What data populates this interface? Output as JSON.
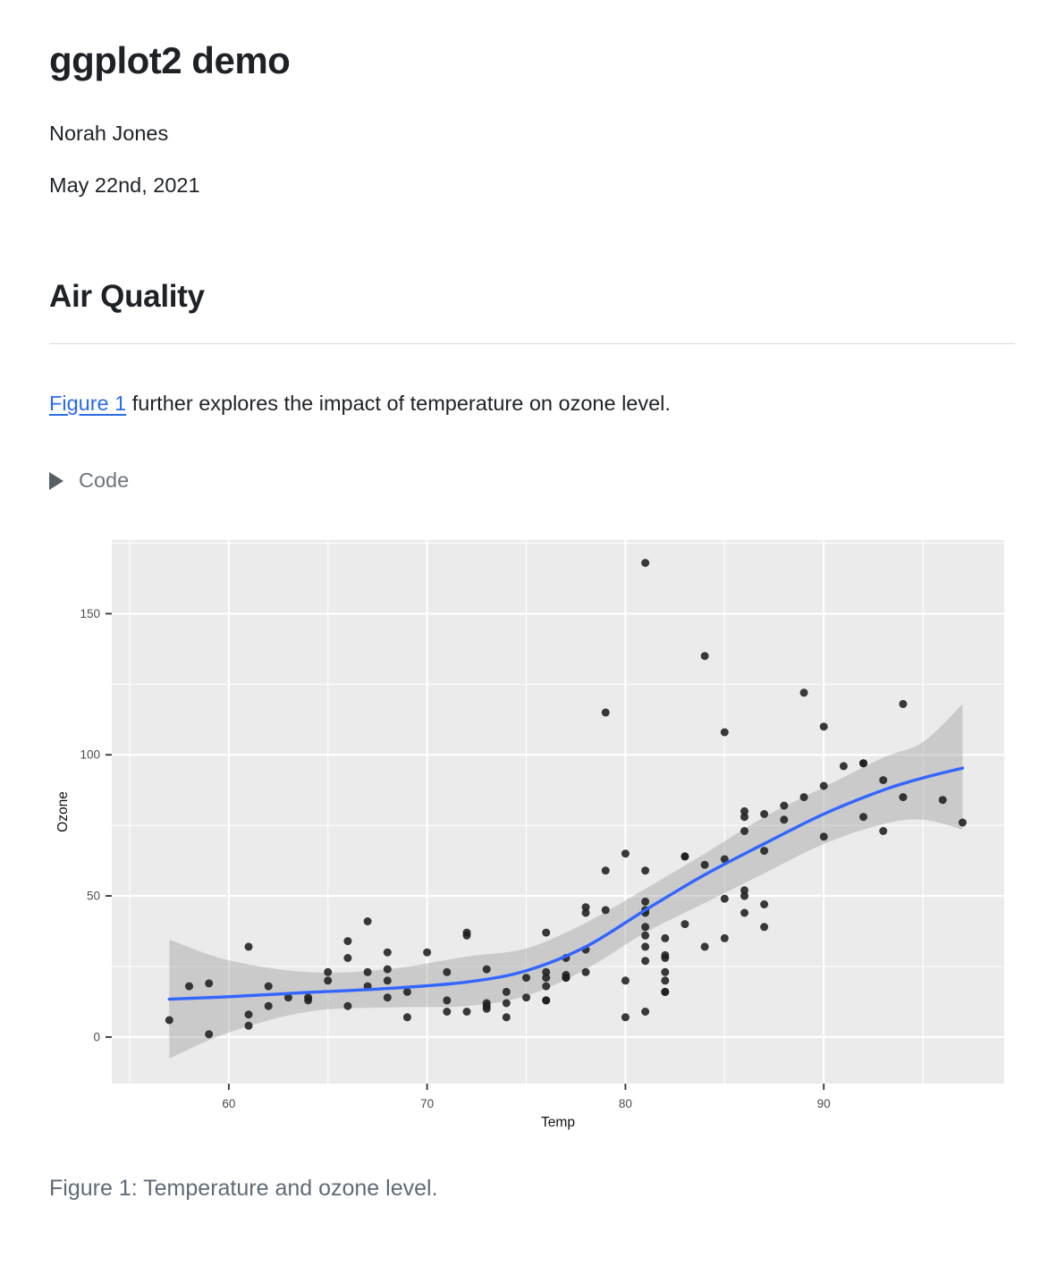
{
  "header": {
    "title": "ggplot2 demo",
    "author": "Norah Jones",
    "date": "May 22nd, 2021"
  },
  "section": {
    "heading": "Air Quality",
    "link_text": "Figure 1",
    "paragraph_rest": " further explores the impact of temperature on ozone level."
  },
  "code_fold": {
    "label": "Code"
  },
  "figure": {
    "caption": "Figure 1: Temperature and ozone level."
  },
  "colors": {
    "link": "#2b6be6",
    "smooth_line": "#3366FF",
    "ribbon": "rgba(153,153,153,0.4)",
    "panel_bg": "#ebebeb",
    "grid_major": "#ffffff",
    "grid_minor": "#ffffff",
    "point": "#1f1f1f",
    "tick_mark": "#333333",
    "tick_label": "#4d4d4d",
    "axis_title": "#111111"
  },
  "chart_data": {
    "type": "scatter",
    "title": "",
    "xlabel": "Temp",
    "ylabel": "Ozone",
    "x_ticks": [
      60,
      70,
      80,
      90
    ],
    "y_ticks": [
      0,
      50,
      100,
      150
    ],
    "x_minor": [
      55,
      65,
      75,
      85,
      95
    ],
    "y_minor": [
      25,
      75,
      125,
      175
    ],
    "xlim": [
      54.1,
      99.1
    ],
    "ylim": [
      -16.5,
      176.1
    ],
    "grid": true,
    "legend": "none",
    "points_note": "R airquality dataset, [Temp °F, Ozone ppb]",
    "points": [
      [
        67,
        41
      ],
      [
        72,
        36
      ],
      [
        74,
        12
      ],
      [
        62,
        18
      ],
      [
        66,
        28
      ],
      [
        65,
        23
      ],
      [
        59,
        19
      ],
      [
        61,
        8
      ],
      [
        74,
        7
      ],
      [
        69,
        16
      ],
      [
        66,
        11
      ],
      [
        68,
        14
      ],
      [
        58,
        18
      ],
      [
        64,
        14
      ],
      [
        66,
        34
      ],
      [
        57,
        6
      ],
      [
        68,
        30
      ],
      [
        62,
        11
      ],
      [
        59,
        1
      ],
      [
        73,
        11
      ],
      [
        61,
        4
      ],
      [
        61,
        32
      ],
      [
        67,
        23
      ],
      [
        81,
        45
      ],
      [
        79,
        115
      ],
      [
        76,
        37
      ],
      [
        82,
        29
      ],
      [
        90,
        71
      ],
      [
        87,
        39
      ],
      [
        82,
        23
      ],
      [
        77,
        21
      ],
      [
        72,
        37
      ],
      [
        65,
        20
      ],
      [
        73,
        12
      ],
      [
        76,
        13
      ],
      [
        84,
        135
      ],
      [
        85,
        49
      ],
      [
        81,
        32
      ],
      [
        83,
        64
      ],
      [
        83,
        40
      ],
      [
        88,
        77
      ],
      [
        92,
        97
      ],
      [
        92,
        97
      ],
      [
        89,
        85
      ],
      [
        73,
        10
      ],
      [
        81,
        27
      ],
      [
        80,
        7
      ],
      [
        81,
        48
      ],
      [
        82,
        35
      ],
      [
        84,
        61
      ],
      [
        87,
        79
      ],
      [
        85,
        63
      ],
      [
        74,
        16
      ],
      [
        86,
        80
      ],
      [
        85,
        108
      ],
      [
        82,
        20
      ],
      [
        86,
        52
      ],
      [
        88,
        82
      ],
      [
        86,
        50
      ],
      [
        83,
        64
      ],
      [
        81,
        59
      ],
      [
        81,
        39
      ],
      [
        81,
        9
      ],
      [
        82,
        16
      ],
      [
        86,
        78
      ],
      [
        85,
        35
      ],
      [
        87,
        66
      ],
      [
        89,
        122
      ],
      [
        90,
        89
      ],
      [
        90,
        110
      ],
      [
        86,
        44
      ],
      [
        82,
        28
      ],
      [
        80,
        65
      ],
      [
        77,
        22
      ],
      [
        79,
        59
      ],
      [
        76,
        23
      ],
      [
        78,
        31
      ],
      [
        78,
        44
      ],
      [
        77,
        21
      ],
      [
        72,
        9
      ],
      [
        79,
        45
      ],
      [
        81,
        168
      ],
      [
        86,
        73
      ],
      [
        97,
        76
      ],
      [
        94,
        118
      ],
      [
        96,
        84
      ],
      [
        94,
        85
      ],
      [
        91,
        96
      ],
      [
        92,
        78
      ],
      [
        93,
        73
      ],
      [
        93,
        91
      ],
      [
        87,
        47
      ],
      [
        84,
        32
      ],
      [
        80,
        20
      ],
      [
        78,
        23
      ],
      [
        75,
        21
      ],
      [
        73,
        24
      ],
      [
        81,
        44
      ],
      [
        76,
        21
      ],
      [
        77,
        28
      ],
      [
        71,
        9
      ],
      [
        71,
        13
      ],
      [
        78,
        46
      ],
      [
        67,
        18
      ],
      [
        76,
        13
      ],
      [
        68,
        24
      ],
      [
        82,
        16
      ],
      [
        64,
        13
      ],
      [
        71,
        23
      ],
      [
        81,
        36
      ],
      [
        69,
        7
      ],
      [
        63,
        14
      ],
      [
        70,
        30
      ],
      [
        75,
        14
      ],
      [
        76,
        18
      ],
      [
        68,
        20
      ]
    ],
    "smooth": {
      "name": "loess fit with 95% confidence ribbon",
      "t": [
        57,
        60,
        64,
        68,
        72,
        75,
        78,
        81,
        84,
        87,
        90,
        93,
        95,
        97
      ],
      "fit": [
        13.4,
        14.3,
        15.8,
        17.2,
        19.5,
        23.5,
        32,
        45,
        57.5,
        68.5,
        79,
        87.5,
        91.8,
        95.3
      ],
      "lower": [
        -7.6,
        1.6,
        9,
        10.5,
        11,
        14.6,
        24,
        37,
        47.5,
        58,
        68.4,
        75.5,
        77,
        73.5
      ],
      "upper": [
        34.5,
        27.2,
        23,
        24,
        28.5,
        31.4,
        40.5,
        52.5,
        65,
        78,
        88.5,
        99,
        104.5,
        118
      ]
    }
  }
}
